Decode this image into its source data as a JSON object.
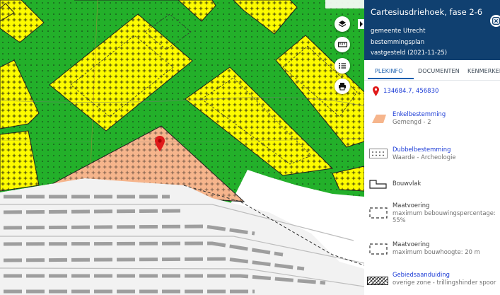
{
  "panel": {
    "title": "Cartesiusdriehoek, fase 2-6",
    "municipality": "gemeente Utrecht",
    "plan_type": "bestemmingsplan",
    "status": "vastgesteld (2021-11-25)",
    "close_icon": "close-icon"
  },
  "tabs": [
    {
      "label": "PLEKINFO",
      "active": true
    },
    {
      "label": "DOCUMENTEN",
      "active": false
    },
    {
      "label": "KENMERKEN",
      "active": false
    }
  ],
  "location": {
    "coordinates": "134684.7, 456830",
    "icon": "map-pin-icon"
  },
  "legend": [
    {
      "title": "Enkelbestemming",
      "detail": "Gemengd - 2",
      "link": true,
      "icon": "orange-area-swatch"
    },
    {
      "title": "Dubbelbestemming",
      "detail": "Waarde - Archeologie",
      "link": true,
      "icon": "dotted-grid-swatch"
    },
    {
      "title": "Bouwvlak",
      "detail": "",
      "link": false,
      "icon": "building-outline-icon"
    },
    {
      "title": "Maatvoering",
      "detail": "maximum bebouwingspercentage: 55%",
      "link": false,
      "icon": "dashed-box-icon"
    },
    {
      "title": "Maatvoering",
      "detail": "maximum bouwhoogte: 20 m",
      "link": false,
      "icon": "dashed-box-icon"
    },
    {
      "title": "Gebiedsaanduiding",
      "detail": "overige zone - trillingshinder spoor",
      "link": true,
      "icon": "hatched-zone-icon"
    }
  ],
  "map_controls": [
    "layers-icon",
    "measure-icon",
    "legend-list-icon",
    "print-icon"
  ],
  "colors": {
    "header": "#104070",
    "link": "#1b3bd6",
    "green": "#23b02a",
    "yellow": "#fdfb00",
    "orange": "#f6b58c"
  }
}
